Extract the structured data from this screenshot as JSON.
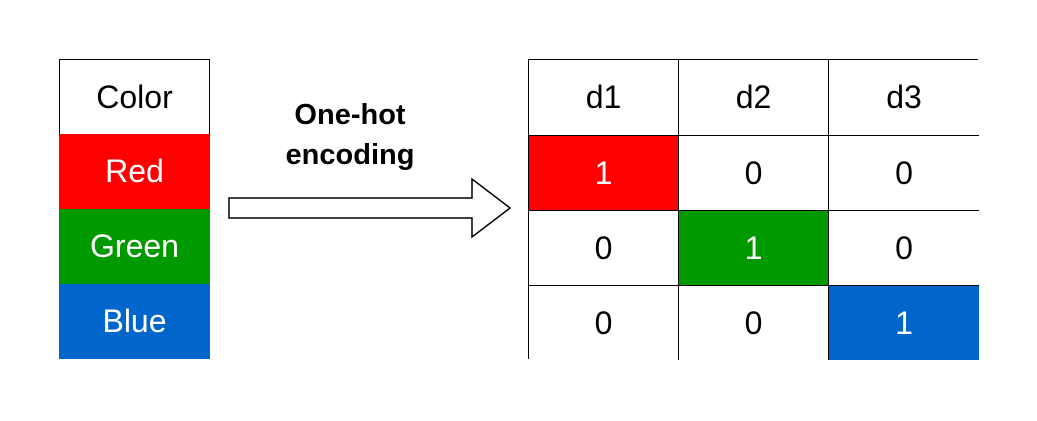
{
  "input": {
    "header": "Color",
    "rows": [
      {
        "label": "Red",
        "color": "#ff0000"
      },
      {
        "label": "Green",
        "color": "#009900"
      },
      {
        "label": "Blue",
        "color": "#0066cc"
      }
    ]
  },
  "arrow_label": {
    "line1": "One-hot",
    "line2": "encoding"
  },
  "output": {
    "headers": [
      "d1",
      "d2",
      "d3"
    ],
    "rows": [
      [
        "1",
        "0",
        "0"
      ],
      [
        "0",
        "1",
        "0"
      ],
      [
        "0",
        "0",
        "1"
      ]
    ]
  }
}
